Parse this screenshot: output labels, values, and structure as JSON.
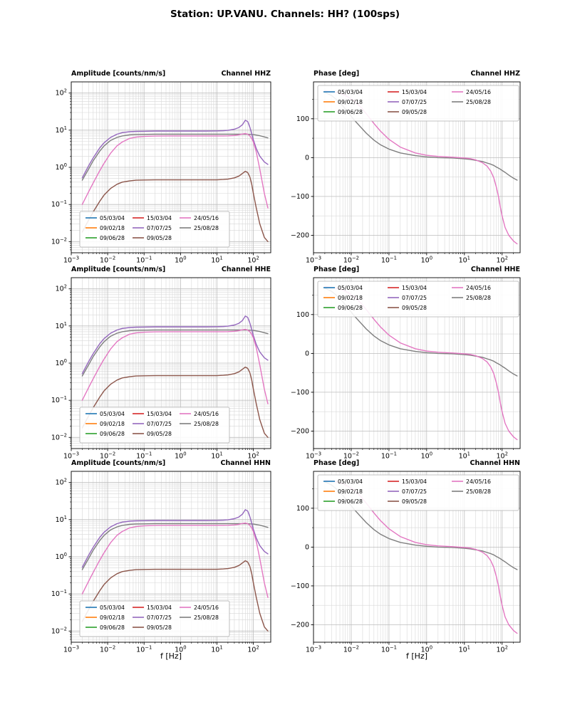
{
  "chart_data": {
    "type": "line",
    "title": "Station: UP.VANU. Channels: HH? (100sps)",
    "layout": "3x2 grid; rows are channels HHZ/HHE/HHN; left column amplitude response (log-log), right column phase response (semilog-x); grid on (major+minor); same response curves repeated on all three rows",
    "channels": [
      "HHZ",
      "HHE",
      "HHN"
    ],
    "channel_titles": [
      "Channel HHZ",
      "Channel HHE",
      "Channel HHN"
    ],
    "xlabel": "f [Hz]",
    "x_scale": "log",
    "xlim": [
      0.001,
      300
    ],
    "x_tick_exponents": [
      -3,
      -2,
      -1,
      0,
      1,
      2
    ],
    "x_tick_labels": [
      "10⁻³",
      "10⁻²",
      "10⁻¹",
      "10⁰",
      "10¹",
      "10²"
    ],
    "amplitude": {
      "title": "Amplitude [counts/nm/s]",
      "y_scale": "log",
      "ylim": [
        0.005,
        200
      ],
      "y_tick_exponents": [
        -2,
        -1,
        0,
        1,
        2
      ],
      "y_tick_labels": [
        "10⁻²",
        "10⁻¹",
        "10⁰",
        "10¹",
        "10²"
      ],
      "frequencies_hz": [
        0.002,
        0.003,
        0.004,
        0.006,
        0.008,
        0.012,
        0.018,
        0.025,
        0.04,
        0.06,
        0.1,
        0.2,
        0.5,
        1,
        2,
        5,
        10,
        15,
        20,
        30,
        40,
        50,
        60,
        70,
        80,
        90,
        100,
        120,
        150,
        200,
        250
      ],
      "series": [
        {
          "label": "25/08/28",
          "color": "#7f7f7f",
          "values": [
            0.45,
            0.9,
            1.5,
            2.7,
            3.8,
            5.3,
            6.4,
            7.0,
            7.5,
            7.65,
            7.7,
            7.8,
            7.8,
            7.8,
            7.8,
            7.8,
            7.8,
            7.8,
            7.8,
            7.8,
            7.8,
            7.8,
            7.8,
            7.75,
            7.7,
            7.65,
            7.6,
            7.4,
            7.1,
            6.6,
            6.2
          ]
        },
        {
          "label": "07/07/25",
          "color": "#9467bd",
          "values": [
            0.52,
            1.1,
            1.8,
            3.3,
            4.6,
            6.4,
            7.8,
            8.6,
            9.1,
            9.3,
            9.4,
            9.5,
            9.5,
            9.5,
            9.5,
            9.5,
            9.6,
            9.7,
            9.9,
            10.6,
            11.8,
            14.0,
            18.5,
            17.0,
            12.0,
            8.0,
            5.5,
            3.2,
            2.0,
            1.4,
            1.2
          ]
        },
        {
          "label": "24/05/16",
          "color": "#e377c2",
          "values": [
            0.1,
            0.22,
            0.38,
            0.8,
            1.3,
            2.4,
            3.8,
            4.8,
            6.0,
            6.5,
            6.8,
            6.95,
            7.0,
            7.0,
            7.0,
            7.0,
            7.0,
            7.0,
            7.05,
            7.2,
            7.5,
            7.9,
            8.1,
            7.8,
            7.0,
            6.0,
            4.8,
            2.6,
            0.9,
            0.2,
            0.08
          ]
        },
        {
          "label": "09/05/28",
          "color": "#8c564b",
          "values": [
            0.018,
            0.038,
            0.063,
            0.12,
            0.18,
            0.27,
            0.35,
            0.4,
            0.43,
            0.45,
            0.455,
            0.46,
            0.46,
            0.46,
            0.46,
            0.46,
            0.46,
            0.47,
            0.48,
            0.52,
            0.58,
            0.68,
            0.78,
            0.72,
            0.55,
            0.35,
            0.2,
            0.08,
            0.03,
            0.013,
            0.01
          ]
        }
      ]
    },
    "phase": {
      "title": "Phase [deg]",
      "y_scale": "linear",
      "ylim": [
        -245,
        195
      ],
      "y_major_ticks": [
        -200,
        -100,
        0,
        100
      ],
      "y_minor_ticks": [
        -150,
        -50,
        50,
        150
      ],
      "y_tick_labels": [
        "−200",
        "−100",
        "0",
        "100"
      ],
      "frequencies_hz": [
        0.002,
        0.003,
        0.004,
        0.006,
        0.008,
        0.012,
        0.018,
        0.025,
        0.04,
        0.06,
        0.1,
        0.2,
        0.5,
        1,
        2,
        5,
        10,
        15,
        20,
        30,
        40,
        50,
        60,
        70,
        80,
        90,
        100,
        120,
        150,
        200,
        250
      ],
      "series": [
        {
          "label": "25/08/28",
          "color": "#7f7f7f",
          "values": [
            168,
            160,
            150,
            133,
            118,
            97,
            78,
            63,
            45,
            33,
            22,
            12,
            5,
            2,
            0,
            -1,
            -3,
            -5,
            -7,
            -10,
            -14,
            -17,
            -20,
            -24,
            -27,
            -30,
            -33,
            -38,
            -45,
            -53,
            -58
          ]
        },
        {
          "label": "24/05/16",
          "color": "#e377c2",
          "values": [
            172,
            170,
            168,
            163,
            157,
            146,
            130,
            113,
            88,
            68,
            47,
            27,
            12,
            6,
            3,
            1,
            -1,
            -3,
            -6,
            -13,
            -22,
            -35,
            -52,
            -75,
            -100,
            -128,
            -150,
            -180,
            -200,
            -215,
            -222
          ]
        }
      ]
    },
    "legend": {
      "ncol": 3,
      "entries": [
        {
          "label": "05/03/04",
          "color": "#1f77b4"
        },
        {
          "label": "09/02/18",
          "color": "#ff7f0e"
        },
        {
          "label": "09/06/28",
          "color": "#2ca02c"
        },
        {
          "label": "15/03/04",
          "color": "#d62728"
        },
        {
          "label": "07/07/25",
          "color": "#9467bd"
        },
        {
          "label": "09/05/28",
          "color": "#8c564b"
        },
        {
          "label": "24/05/16",
          "color": "#e377c2"
        },
        {
          "label": "25/08/28",
          "color": "#7f7f7f"
        }
      ]
    }
  }
}
